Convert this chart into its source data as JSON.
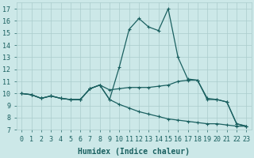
{
  "xlabel": "Humidex (Indice chaleur)",
  "background_color": "#cce8e8",
  "grid_color": "#aacccc",
  "line_color": "#1a6060",
  "xlim": [
    -0.5,
    23.5
  ],
  "ylim": [
    7,
    17.5
  ],
  "xticks": [
    0,
    1,
    2,
    3,
    4,
    5,
    6,
    7,
    8,
    9,
    10,
    11,
    12,
    13,
    14,
    15,
    16,
    17,
    18,
    19,
    20,
    21,
    22,
    23
  ],
  "yticks": [
    7,
    8,
    9,
    10,
    11,
    12,
    13,
    14,
    15,
    16,
    17
  ],
  "series1_x": [
    0,
    1,
    2,
    3,
    4,
    5,
    6,
    7,
    8,
    9,
    10,
    11,
    12,
    13,
    14,
    15,
    16,
    17,
    18,
    19,
    20,
    21,
    22,
    23
  ],
  "series1_y": [
    10.0,
    9.9,
    9.6,
    9.8,
    9.6,
    9.5,
    9.5,
    10.4,
    10.7,
    10.3,
    10.4,
    10.5,
    10.5,
    10.5,
    10.6,
    10.7,
    11.0,
    11.1,
    11.1,
    9.6,
    9.5,
    9.3,
    7.5,
    7.3
  ],
  "series2_x": [
    0,
    1,
    2,
    3,
    4,
    5,
    6,
    7,
    8,
    9,
    10,
    11,
    12,
    13,
    14,
    15,
    16,
    17,
    18,
    19,
    20,
    21,
    22,
    23
  ],
  "series2_y": [
    10.0,
    9.9,
    9.6,
    9.8,
    9.6,
    9.5,
    9.5,
    10.4,
    10.7,
    9.5,
    9.1,
    8.8,
    8.5,
    8.3,
    8.1,
    7.9,
    7.8,
    7.7,
    7.6,
    7.5,
    7.5,
    7.4,
    7.3,
    7.3
  ],
  "series3_x": [
    0,
    1,
    2,
    3,
    4,
    5,
    6,
    7,
    8,
    9,
    10,
    11,
    12,
    13,
    14,
    15,
    16,
    17,
    18,
    19,
    20,
    21,
    22,
    23
  ],
  "series3_y": [
    10.0,
    9.9,
    9.6,
    9.8,
    9.6,
    9.5,
    9.5,
    10.4,
    10.7,
    9.5,
    12.2,
    15.3,
    16.2,
    15.5,
    15.2,
    17.0,
    13.0,
    11.2,
    11.1,
    9.5,
    9.5,
    9.3,
    7.5,
    7.3
  ],
  "marker": "+",
  "markersize": 3,
  "markeredgewidth": 0.8,
  "linewidth": 0.9,
  "xlabel_fontsize": 7,
  "tick_fontsize": 6
}
